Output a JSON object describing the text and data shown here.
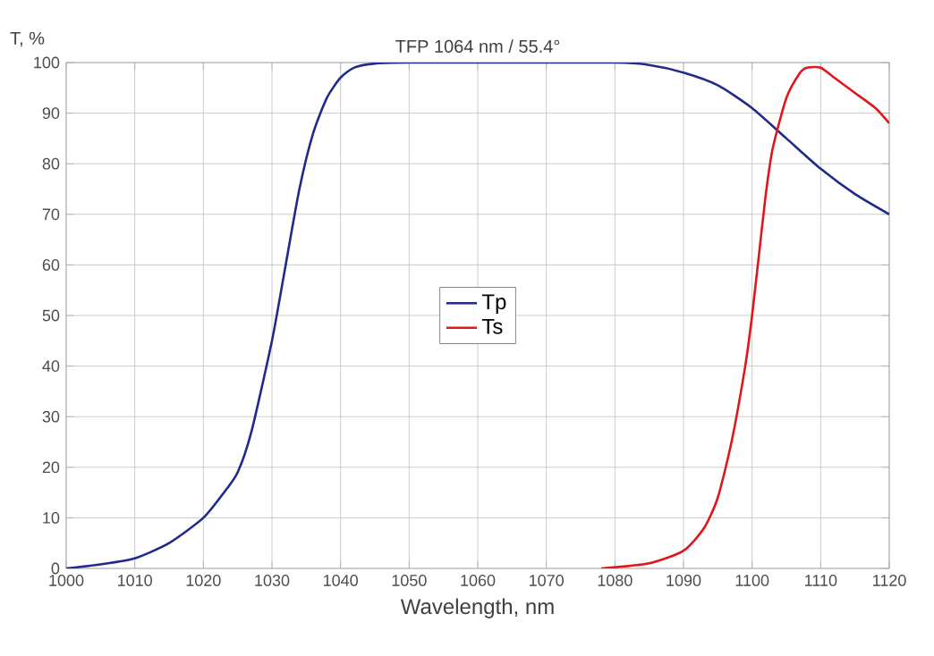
{
  "chart_data": {
    "type": "line",
    "title": "TFP 1064 nm / 55.4°",
    "xlabel": "Wavelength, nm",
    "ylabel": "T, %",
    "xlim": [
      1000,
      1120
    ],
    "ylim": [
      0,
      100
    ],
    "xticks": [
      1000,
      1010,
      1020,
      1030,
      1040,
      1050,
      1060,
      1070,
      1080,
      1090,
      1100,
      1110,
      1120
    ],
    "yticks": [
      0,
      10,
      20,
      30,
      40,
      50,
      60,
      70,
      80,
      90,
      100
    ],
    "grid": true,
    "legend": "center",
    "marker": "none",
    "line_style": "solid",
    "series": [
      {
        "name": "Tp",
        "color": "#1f2a8a",
        "x": [
          1000,
          1005,
          1010,
          1015,
          1020,
          1023,
          1025,
          1027,
          1030,
          1032,
          1034,
          1036,
          1038,
          1040,
          1042,
          1045,
          1050,
          1080,
          1085,
          1090,
          1095,
          1100,
          1105,
          1110,
          1115,
          1120
        ],
        "values": [
          0,
          0.8,
          2,
          5,
          10,
          15,
          19,
          27,
          45,
          60,
          75,
          86,
          93,
          97,
          99,
          99.8,
          100,
          100,
          99.5,
          98,
          95.5,
          91,
          85,
          79,
          74,
          70
        ]
      },
      {
        "name": "Ts",
        "color": "#e0161b",
        "x": [
          1078,
          1085,
          1090,
          1093,
          1095,
          1097,
          1099,
          1100,
          1101,
          1102,
          1103,
          1105,
          1107,
          1108,
          1110,
          1112,
          1115,
          1118,
          1120
        ],
        "values": [
          0,
          1,
          3.5,
          8,
          14,
          25,
          40,
          50,
          62,
          74,
          83,
          93,
          98,
          99,
          99,
          97,
          94,
          91,
          88
        ]
      }
    ]
  }
}
